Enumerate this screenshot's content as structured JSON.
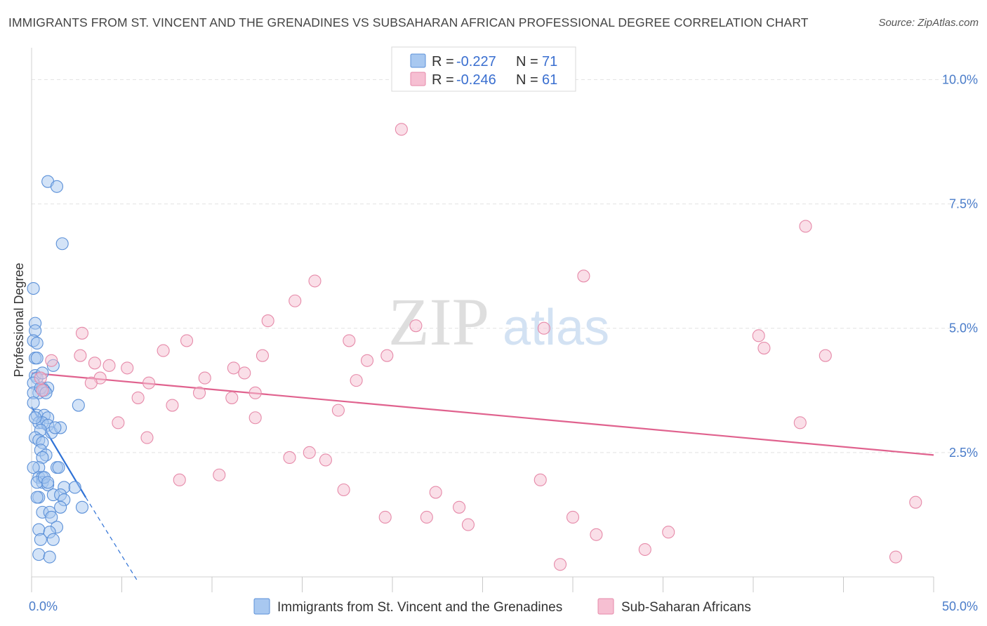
{
  "title": "IMMIGRANTS FROM ST. VINCENT AND THE GRENADINES VS SUBSAHARAN AFRICAN PROFESSIONAL DEGREE CORRELATION CHART",
  "source": "Source: ZipAtlas.com",
  "watermark": {
    "zip": "ZIP",
    "atlas": "atlas"
  },
  "colors": {
    "blue_fill": "#a8c8f0",
    "blue_stroke": "#5b90d8",
    "blue_line": "#2f72d6",
    "pink_fill": "#f6bfd2",
    "pink_stroke": "#e68aa9",
    "pink_line": "#e0628e",
    "grid": "#e2e2e2",
    "axis_label": "#4a7cc9"
  },
  "legend": [
    {
      "r_label": "R =",
      "r_value": "-0.227",
      "n_label": "N =",
      "n_value": "71"
    },
    {
      "r_label": "R =",
      "r_value": "-0.246",
      "n_label": "N =",
      "n_value": "61"
    }
  ],
  "bottom_legend": [
    {
      "label": "Immigrants from St. Vincent and the Grenadines"
    },
    {
      "label": "Sub-Saharan Africans"
    }
  ],
  "chart_data": {
    "type": "scatter",
    "xlabel": "",
    "ylabel": "Professional Degree",
    "xlim": [
      0,
      50
    ],
    "ylim": [
      0,
      10.5
    ],
    "x_tick_labels": [
      {
        "value": 0,
        "label": "0.0%"
      },
      {
        "value": 50,
        "label": "50.0%"
      }
    ],
    "y_tick_labels": [
      {
        "value": 2.5,
        "label": "2.5%"
      },
      {
        "value": 5.0,
        "label": "5.0%"
      },
      {
        "value": 7.5,
        "label": "7.5%"
      },
      {
        "value": 10.0,
        "label": "10.0%"
      }
    ],
    "x_minor_ticks": [
      0,
      5,
      10,
      15,
      20,
      25,
      30,
      35,
      40,
      45,
      50
    ],
    "grid_y": [
      2.5,
      5.0,
      7.5,
      10.0
    ],
    "series": [
      {
        "name": "Immigrants from St. Vincent and the Grenadines",
        "color": "blue",
        "points": [
          [
            0.9,
            7.95
          ],
          [
            1.4,
            7.85
          ],
          [
            1.7,
            6.7
          ],
          [
            0.1,
            5.8
          ],
          [
            0.2,
            5.1
          ],
          [
            0.2,
            4.95
          ],
          [
            0.1,
            4.75
          ],
          [
            0.3,
            4.7
          ],
          [
            0.2,
            4.4
          ],
          [
            0.3,
            4.4
          ],
          [
            1.2,
            4.25
          ],
          [
            0.2,
            4.05
          ],
          [
            0.3,
            4.0
          ],
          [
            0.6,
            4.1
          ],
          [
            0.1,
            3.9
          ],
          [
            0.6,
            3.8
          ],
          [
            0.9,
            3.8
          ],
          [
            0.4,
            3.7
          ],
          [
            0.1,
            3.7
          ],
          [
            0.7,
            3.75
          ],
          [
            2.6,
            3.45
          ],
          [
            0.1,
            3.5
          ],
          [
            0.3,
            3.25
          ],
          [
            0.7,
            3.25
          ],
          [
            0.9,
            3.2
          ],
          [
            0.4,
            3.1
          ],
          [
            0.6,
            3.1
          ],
          [
            0.9,
            3.05
          ],
          [
            0.5,
            2.95
          ],
          [
            1.1,
            2.9
          ],
          [
            1.6,
            3.0
          ],
          [
            0.2,
            2.8
          ],
          [
            0.4,
            2.75
          ],
          [
            0.6,
            2.7
          ],
          [
            0.5,
            2.55
          ],
          [
            0.8,
            2.45
          ],
          [
            0.6,
            2.4
          ],
          [
            0.4,
            2.2
          ],
          [
            0.1,
            2.2
          ],
          [
            1.4,
            2.2
          ],
          [
            0.4,
            2.0
          ],
          [
            0.6,
            2.0
          ],
          [
            0.6,
            1.9
          ],
          [
            0.3,
            1.9
          ],
          [
            0.9,
            1.85
          ],
          [
            1.8,
            1.8
          ],
          [
            2.4,
            1.8
          ],
          [
            1.2,
            1.65
          ],
          [
            1.6,
            1.65
          ],
          [
            0.4,
            1.6
          ],
          [
            1.8,
            1.55
          ],
          [
            1.6,
            1.4
          ],
          [
            2.8,
            1.4
          ],
          [
            0.6,
            1.3
          ],
          [
            1.0,
            1.3
          ],
          [
            1.1,
            1.2
          ],
          [
            1.4,
            1.0
          ],
          [
            0.4,
            0.95
          ],
          [
            1.0,
            0.9
          ],
          [
            1.2,
            0.75
          ],
          [
            0.5,
            0.75
          ],
          [
            0.4,
            0.45
          ],
          [
            1.0,
            0.4
          ],
          [
            0.5,
            3.8
          ],
          [
            0.8,
            3.7
          ],
          [
            0.2,
            3.2
          ],
          [
            1.3,
            3.0
          ],
          [
            0.7,
            2.0
          ],
          [
            0.3,
            1.6
          ],
          [
            1.5,
            2.2
          ],
          [
            0.9,
            1.9
          ]
        ],
        "trend": {
          "x": [
            0.0,
            3.0
          ],
          "y": [
            3.42,
            1.6
          ]
        },
        "trend_extended": {
          "x": [
            3.0,
            5.9
          ],
          "y": [
            1.6,
            -0.1
          ]
        }
      },
      {
        "name": "Sub-Saharan Africans",
        "color": "pink",
        "points": [
          [
            20.5,
            9.0
          ],
          [
            42.9,
            7.05
          ],
          [
            30.6,
            6.05
          ],
          [
            15.7,
            5.95
          ],
          [
            14.6,
            5.55
          ],
          [
            13.1,
            5.15
          ],
          [
            21.3,
            5.05
          ],
          [
            28.4,
            5.0
          ],
          [
            2.8,
            4.9
          ],
          [
            8.6,
            4.75
          ],
          [
            40.3,
            4.85
          ],
          [
            7.3,
            4.55
          ],
          [
            17.6,
            4.75
          ],
          [
            40.6,
            4.6
          ],
          [
            12.8,
            4.45
          ],
          [
            19.7,
            4.45
          ],
          [
            44.0,
            4.45
          ],
          [
            18.6,
            4.35
          ],
          [
            1.1,
            4.35
          ],
          [
            2.7,
            4.45
          ],
          [
            3.5,
            4.3
          ],
          [
            4.3,
            4.25
          ],
          [
            5.3,
            4.2
          ],
          [
            11.2,
            4.2
          ],
          [
            11.8,
            4.1
          ],
          [
            9.6,
            4.0
          ],
          [
            3.8,
            4.0
          ],
          [
            0.5,
            4.0
          ],
          [
            18.0,
            3.95
          ],
          [
            6.5,
            3.9
          ],
          [
            3.3,
            3.9
          ],
          [
            9.3,
            3.7
          ],
          [
            12.4,
            3.7
          ],
          [
            11.1,
            3.6
          ],
          [
            5.9,
            3.6
          ],
          [
            7.8,
            3.45
          ],
          [
            17.0,
            3.35
          ],
          [
            12.4,
            3.2
          ],
          [
            4.8,
            3.1
          ],
          [
            42.6,
            3.1
          ],
          [
            6.4,
            2.8
          ],
          [
            15.4,
            2.5
          ],
          [
            14.3,
            2.4
          ],
          [
            16.3,
            2.35
          ],
          [
            10.4,
            2.05
          ],
          [
            8.2,
            1.95
          ],
          [
            28.2,
            1.95
          ],
          [
            17.3,
            1.75
          ],
          [
            22.4,
            1.7
          ],
          [
            23.7,
            1.4
          ],
          [
            49.0,
            1.5
          ],
          [
            19.6,
            1.2
          ],
          [
            21.9,
            1.2
          ],
          [
            30.0,
            1.2
          ],
          [
            24.2,
            1.05
          ],
          [
            31.3,
            0.85
          ],
          [
            35.3,
            0.9
          ],
          [
            34.0,
            0.55
          ],
          [
            29.3,
            0.25
          ],
          [
            47.9,
            0.4
          ],
          [
            0.6,
            3.75
          ]
        ],
        "trend": {
          "x": [
            0.0,
            50.0
          ],
          "y": [
            4.1,
            2.45
          ]
        }
      }
    ]
  }
}
